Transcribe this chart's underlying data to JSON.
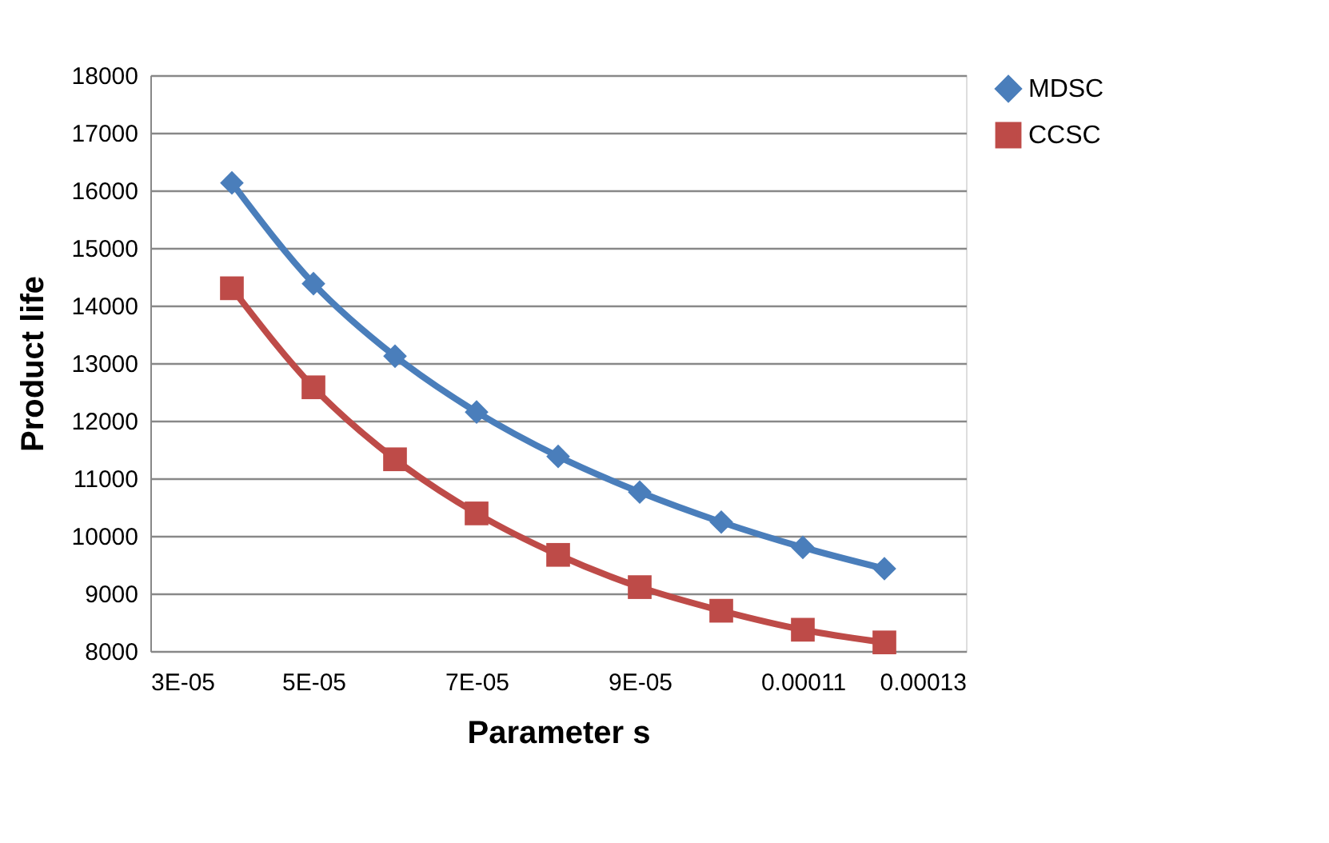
{
  "chart_data": {
    "type": "line",
    "xlabel": "Parameter s",
    "ylabel": "Product life",
    "x": [
      4e-05,
      5e-05,
      6e-05,
      7e-05,
      8e-05,
      9e-05,
      0.0001,
      0.00011,
      0.00012
    ],
    "series": [
      {
        "name": "MDSC",
        "color": "#4a7ebb",
        "marker": "diamond",
        "values": [
          16130,
          14380,
          13120,
          12150,
          11380,
          10760,
          10240,
          9800,
          9430
        ]
      },
      {
        "name": "CCSC",
        "color": "#be4b48",
        "marker": "square",
        "values": [
          14300,
          12580,
          11330,
          10390,
          9670,
          9110,
          8700,
          8370,
          8150
        ]
      }
    ],
    "xlim": [
      3e-05,
      0.00013
    ],
    "xticks": [
      {
        "value": 3e-05,
        "label": "3E-05"
      },
      {
        "value": 5e-05,
        "label": "5E-05"
      },
      {
        "value": 7e-05,
        "label": "7E-05"
      },
      {
        "value": 9e-05,
        "label": "9E-05"
      },
      0.00011,
      0.00013
    ],
    "ylim": [
      8000,
      18000
    ],
    "yticks": [
      8000,
      9000,
      10000,
      11000,
      12000,
      13000,
      14000,
      15000,
      16000,
      17000,
      18000
    ],
    "grid": "y",
    "legend": "right"
  }
}
